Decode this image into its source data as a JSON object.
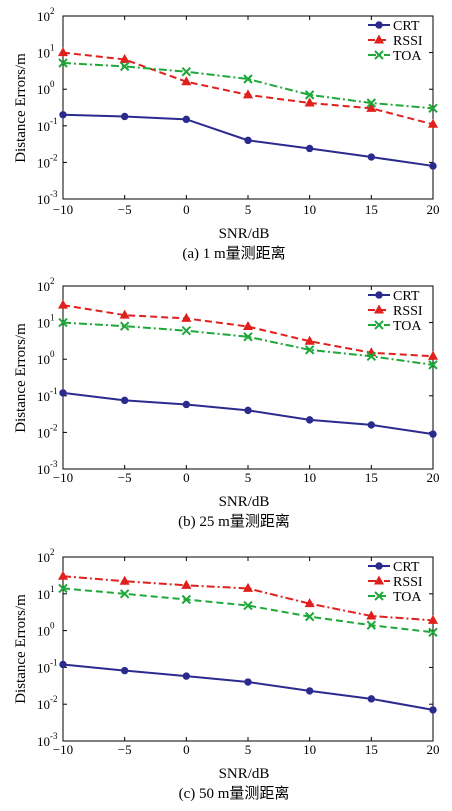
{
  "chart_data": [
    {
      "type": "line",
      "caption": "(a) 1 m量测距离",
      "xlabel": "SNR/dB",
      "ylabel": "Distance Errors/m",
      "yscale": "log",
      "ylim": [
        0.001,
        100
      ],
      "xlim": [
        -10,
        20
      ],
      "x": [
        -10,
        -5,
        0,
        5,
        10,
        15,
        20
      ],
      "xticks": [
        "−10",
        "−5",
        "0",
        "5",
        "10",
        "15",
        "20"
      ],
      "yticks": [
        {
          "base": "10",
          "exp": "2"
        },
        {
          "base": "10",
          "exp": "1"
        },
        {
          "base": "10",
          "exp": "0"
        },
        {
          "base": "10",
          "exp": "-1"
        },
        {
          "base": "10",
          "exp": "-2"
        },
        {
          "base": "10",
          "exp": "-3"
        }
      ],
      "legend_position": "top-right",
      "grid": false,
      "series": [
        {
          "name": "CRT",
          "color": "#2b2b8f",
          "marker": "circle",
          "dash": "solid",
          "values": [
            0.2,
            0.18,
            0.15,
            0.04,
            0.024,
            0.014,
            0.008
          ]
        },
        {
          "name": "RSSI",
          "color": "#e0201c",
          "marker": "triangle",
          "dash": "dashed",
          "values": [
            10,
            6.5,
            1.6,
            0.7,
            0.42,
            0.3,
            0.11
          ]
        },
        {
          "name": "TOA",
          "color": "#1fa83a",
          "marker": "x",
          "dash": "dashdot",
          "values": [
            5.2,
            4.2,
            3.0,
            1.9,
            0.7,
            0.42,
            0.3
          ]
        }
      ]
    },
    {
      "type": "line",
      "caption": "(b) 25 m量测距离",
      "xlabel": "SNR/dB",
      "ylabel": "Distance Errors/m",
      "yscale": "log",
      "ylim": [
        0.001,
        100
      ],
      "xlim": [
        -10,
        20
      ],
      "x": [
        -10,
        -5,
        0,
        5,
        10,
        15,
        20
      ],
      "xticks": [
        "−10",
        "−5",
        "0",
        "5",
        "10",
        "15",
        "20"
      ],
      "yticks": [
        {
          "base": "10",
          "exp": "2"
        },
        {
          "base": "10",
          "exp": "1"
        },
        {
          "base": "10",
          "exp": "0"
        },
        {
          "base": "10",
          "exp": "-1"
        },
        {
          "base": "10",
          "exp": "-2"
        },
        {
          "base": "10",
          "exp": "-3"
        }
      ],
      "legend_position": "top-right",
      "grid": false,
      "series": [
        {
          "name": "CRT",
          "color": "#2b2b8f",
          "marker": "circle",
          "dash": "solid",
          "values": [
            0.12,
            0.075,
            0.058,
            0.04,
            0.022,
            0.016,
            0.009
          ]
        },
        {
          "name": "RSSI",
          "color": "#e0201c",
          "marker": "triangle",
          "dash": "dashed",
          "values": [
            30,
            16,
            13,
            7.8,
            3.1,
            1.5,
            1.2
          ]
        },
        {
          "name": "TOA",
          "color": "#1fa83a",
          "marker": "x",
          "dash": "dashdot",
          "values": [
            10,
            8,
            6,
            4.1,
            1.8,
            1.2,
            0.7
          ]
        }
      ]
    },
    {
      "type": "line",
      "caption": "(c) 50 m量测距离",
      "xlabel": "SNR/dB",
      "ylabel": "Distance Errors/m",
      "yscale": "log",
      "ylim": [
        0.001,
        100
      ],
      "xlim": [
        -10,
        20
      ],
      "x": [
        -10,
        -5,
        0,
        5,
        10,
        15,
        20
      ],
      "xticks": [
        "−10",
        "−5",
        "0",
        "5",
        "10",
        "15",
        "20"
      ],
      "yticks": [
        {
          "base": "10",
          "exp": "2"
        },
        {
          "base": "10",
          "exp": "1"
        },
        {
          "base": "10",
          "exp": "0"
        },
        {
          "base": "10",
          "exp": "-1"
        },
        {
          "base": "10",
          "exp": "-2"
        },
        {
          "base": "10",
          "exp": "-3"
        }
      ],
      "legend_position": "top-right",
      "grid": false,
      "series": [
        {
          "name": "CRT",
          "color": "#2b2b8f",
          "marker": "circle",
          "dash": "solid",
          "values": [
            0.12,
            0.082,
            0.058,
            0.04,
            0.023,
            0.014,
            0.007
          ]
        },
        {
          "name": "RSSI",
          "color": "#e0201c",
          "marker": "triangle",
          "dash": "dashdot",
          "values": [
            30,
            22,
            17,
            14,
            5.4,
            2.5,
            1.9
          ]
        },
        {
          "name": "TOA",
          "color": "#1fa83a",
          "marker": "x",
          "dash": "dashed",
          "values": [
            14,
            10,
            7,
            4.8,
            2.4,
            1.4,
            0.9
          ]
        }
      ]
    }
  ]
}
